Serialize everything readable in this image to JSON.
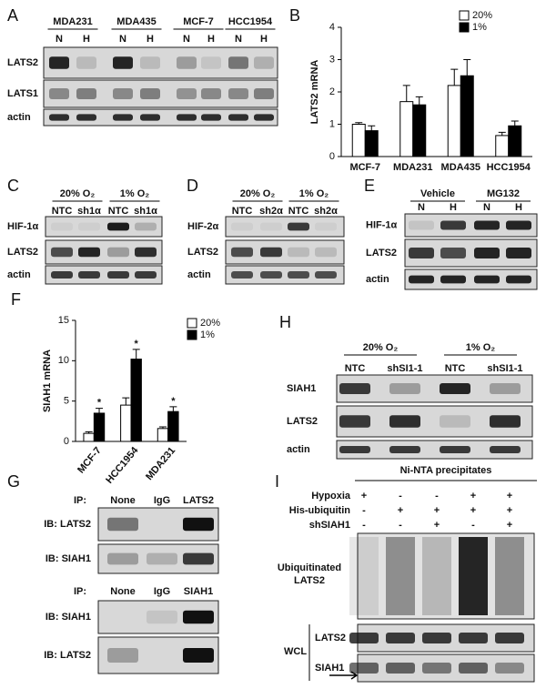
{
  "panels": {
    "A": {
      "label": "A",
      "cell_lines": [
        "MDA231",
        "MDA435",
        "MCF-7",
        "HCC1954"
      ],
      "lanes": [
        "N",
        "H",
        "N",
        "H",
        "N",
        "H",
        "N",
        "H"
      ],
      "rows": [
        "LATS2",
        "LATS1",
        "actin"
      ]
    },
    "B": {
      "label": "B"
    },
    "C": {
      "label": "C",
      "conditions": [
        "20% O₂",
        "1% O₂"
      ],
      "lanes": [
        "NTC",
        "sh1α",
        "NTC",
        "sh1α"
      ],
      "rows": [
        "HIF-1α",
        "LATS2",
        "actin"
      ]
    },
    "D": {
      "label": "D",
      "conditions": [
        "20% O₂",
        "1% O₂"
      ],
      "lanes": [
        "NTC",
        "sh2α",
        "NTC",
        "sh2α"
      ],
      "rows": [
        "HIF-2α",
        "LATS2",
        "actin"
      ]
    },
    "E": {
      "label": "E",
      "conditions": [
        "Vehicle",
        "MG132"
      ],
      "lanes": [
        "N",
        "H",
        "N",
        "H"
      ],
      "rows": [
        "HIF-1α",
        "LATS2",
        "actin"
      ]
    },
    "F": {
      "label": "F"
    },
    "H": {
      "label": "H",
      "conditions": [
        "20% O₂",
        "1% O₂"
      ],
      "lanes": [
        "NTC",
        "shSI1-1",
        "NTC",
        "shSI1-1"
      ],
      "rows": [
        "SIAH1",
        "LATS2",
        "actin"
      ]
    },
    "G": {
      "label": "G",
      "blocks": [
        {
          "ip_label": "IP:",
          "lanes": [
            "None",
            "IgG",
            "LATS2"
          ],
          "rows": [
            "IB: LATS2",
            "IB: SIAH1"
          ]
        },
        {
          "ip_label": "IP:",
          "lanes": [
            "None",
            "IgG",
            "SIAH1"
          ],
          "rows": [
            "IB: SIAH1",
            "IB: LATS2"
          ]
        }
      ]
    },
    "I": {
      "label": "I",
      "title": "Ni-NTA precipitates",
      "conditions": [
        {
          "name": "Hypoxia",
          "signs": [
            "+",
            "-",
            "-",
            "+",
            "+"
          ]
        },
        {
          "name": "His-ubiquitin",
          "signs": [
            "-",
            "+",
            "+",
            "+",
            "+"
          ]
        },
        {
          "name": "shSIAH1",
          "signs": [
            "-",
            "-",
            "+",
            "-",
            "+"
          ]
        }
      ],
      "blot_label": [
        "Ubiquitinated",
        "LATS2"
      ],
      "wcl_label": "WCL",
      "wcl_rows": [
        "LATS2",
        "SIAH1"
      ]
    }
  },
  "chart_data": [
    {
      "type": "bar",
      "ylabel": "LATS2 mRNA",
      "categories": [
        "MCF-7",
        "MDA231",
        "MDA435",
        "HCC1954"
      ],
      "series": [
        {
          "name": "20%",
          "color": "#ffffff",
          "values": [
            1.0,
            1.7,
            2.2,
            0.65
          ],
          "errors": [
            0.05,
            0.5,
            0.5,
            0.1
          ]
        },
        {
          "name": "1%",
          "color": "#000000",
          "values": [
            0.8,
            1.6,
            2.5,
            0.95
          ],
          "errors": [
            0.15,
            0.25,
            0.5,
            0.15
          ]
        }
      ],
      "ylim": [
        0,
        4
      ],
      "yticks": [
        0,
        1,
        2,
        3,
        4
      ],
      "legend": "upper right"
    },
    {
      "type": "bar",
      "ylabel": "SIAH1 mRNA",
      "categories": [
        "MCF-7",
        "HCC1954",
        "MDA231"
      ],
      "series": [
        {
          "name": "20%",
          "color": "#ffffff",
          "values": [
            1.0,
            4.5,
            1.6
          ],
          "errors": [
            0.2,
            0.9,
            0.2
          ]
        },
        {
          "name": "1%",
          "color": "#000000",
          "values": [
            3.5,
            10.2,
            3.7
          ],
          "errors": [
            0.6,
            1.2,
            0.6
          ]
        }
      ],
      "annotations": [
        "*",
        "*",
        "*"
      ],
      "ylim": [
        0,
        15
      ],
      "yticks": [
        0,
        5,
        10,
        15
      ],
      "legend": "upper right"
    }
  ]
}
